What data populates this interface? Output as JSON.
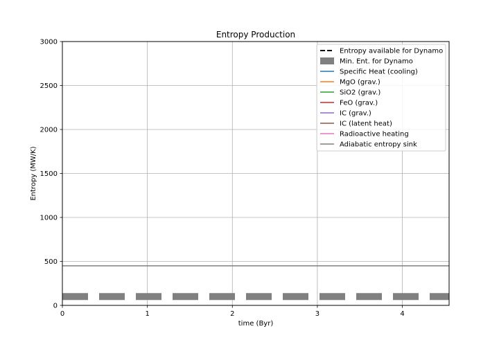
{
  "chart_data": {
    "type": "line",
    "title": "Entropy Production",
    "xlabel": "time (Byr)",
    "ylabel": "Entropy (MW/K)",
    "xlim": [
      0,
      4.55
    ],
    "ylim": [
      0,
      3000
    ],
    "xticks": [
      0,
      1,
      2,
      3,
      4
    ],
    "yticks": [
      0,
      500,
      1000,
      1500,
      2000,
      2500,
      3000
    ],
    "grid": true,
    "legend_position": "top-right",
    "series": [
      {
        "name": "Entropy available for Dynamo",
        "color": "#000000",
        "style": "dashed",
        "x": [],
        "y": []
      },
      {
        "name": "Min. Ent. for Dynamo",
        "color": "#808080",
        "style": "thick-dashed",
        "x": [
          0,
          4.55
        ],
        "y": [
          100,
          100
        ]
      },
      {
        "name": "Specific Heat (cooling)",
        "color": "#1f77b4",
        "style": "solid",
        "x": [],
        "y": []
      },
      {
        "name": "MgO (grav.)",
        "color": "#ff7f0e",
        "style": "solid",
        "x": [],
        "y": []
      },
      {
        "name": "SiO2 (grav.)",
        "color": "#2ca02c",
        "style": "solid",
        "x": [],
        "y": []
      },
      {
        "name": "FeO (grav.)",
        "color": "#d62728",
        "style": "solid",
        "x": [],
        "y": []
      },
      {
        "name": "IC (grav.)",
        "color": "#9467bd",
        "style": "solid",
        "x": [],
        "y": []
      },
      {
        "name": "IC (latent heat)",
        "color": "#8c564b",
        "style": "solid",
        "x": [],
        "y": []
      },
      {
        "name": "Radioactive heating",
        "color": "#e377c2",
        "style": "solid",
        "x": [],
        "y": []
      },
      {
        "name": "Adiabatic entropy sink",
        "color": "#7f7f7f",
        "style": "solid",
        "x": [
          0,
          4.55
        ],
        "y": [
          450,
          450
        ]
      }
    ]
  }
}
